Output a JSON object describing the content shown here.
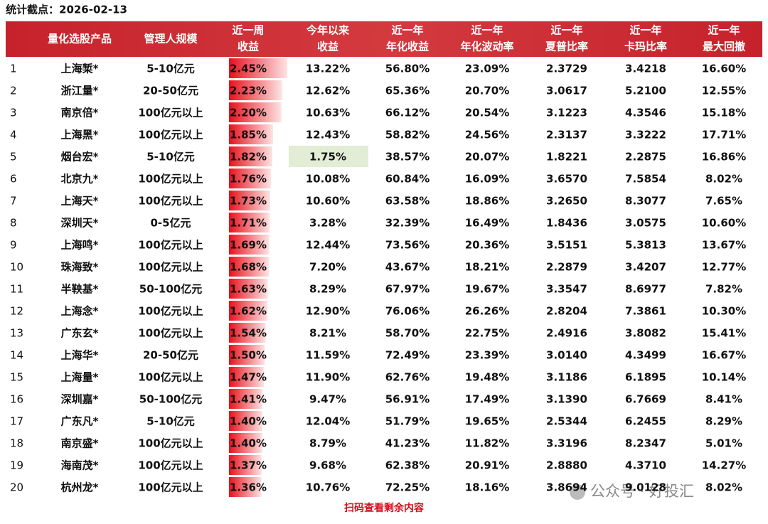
{
  "header": {
    "title": "统计截点：2026-02-13"
  },
  "table": {
    "columns": [
      [
        "量化选股产品"
      ],
      [
        "管理人规模"
      ],
      [
        "近一周",
        "收益"
      ],
      [
        "今年以来",
        "收益"
      ],
      [
        "近一年",
        "年化收益"
      ],
      [
        "近一年",
        "年化波动率"
      ],
      [
        "近一年",
        "夏普比率"
      ],
      [
        "近一年",
        "卡玛比率"
      ],
      [
        "近一年",
        "最大回撤"
      ]
    ],
    "rows": [
      [
        "1",
        "上海椠*",
        "5-10亿元",
        "2.45%",
        "13.22%",
        "56.80%",
        "23.09%",
        "2.3729",
        "3.4218",
        "16.60%"
      ],
      [
        "2",
        "浙江量*",
        "20-50亿元",
        "2.23%",
        "12.62%",
        "65.36%",
        "20.70%",
        "3.0617",
        "5.2100",
        "12.55%"
      ],
      [
        "3",
        "南京倍*",
        "100亿元以上",
        "2.20%",
        "10.63%",
        "66.12%",
        "20.54%",
        "3.1223",
        "4.3546",
        "15.18%"
      ],
      [
        "4",
        "上海黑*",
        "100亿元以上",
        "1.85%",
        "12.43%",
        "58.82%",
        "24.56%",
        "2.3137",
        "3.3222",
        "17.71%"
      ],
      [
        "5",
        "烟台宏*",
        "5-10亿元",
        "1.82%",
        "1.75%",
        "38.57%",
        "20.07%",
        "1.8221",
        "2.2875",
        "16.86%"
      ],
      [
        "6",
        "北京九*",
        "100亿元以上",
        "1.76%",
        "10.08%",
        "60.84%",
        "16.09%",
        "3.6570",
        "7.5854",
        "8.02%"
      ],
      [
        "7",
        "上海天*",
        "100亿元以上",
        "1.73%",
        "10.60%",
        "63.58%",
        "18.86%",
        "3.2650",
        "8.3077",
        "7.65%"
      ],
      [
        "8",
        "深圳天*",
        "0-5亿元",
        "1.71%",
        "3.28%",
        "32.39%",
        "16.49%",
        "1.8436",
        "3.0575",
        "10.60%"
      ],
      [
        "9",
        "上海鸣*",
        "100亿元以上",
        "1.69%",
        "12.44%",
        "73.56%",
        "20.36%",
        "3.5151",
        "5.3813",
        "13.67%"
      ],
      [
        "10",
        "珠海致*",
        "100亿元以上",
        "1.68%",
        "7.20%",
        "43.67%",
        "18.21%",
        "2.2879",
        "3.4207",
        "12.77%"
      ],
      [
        "11",
        "半鞅基*",
        "50-100亿元",
        "1.63%",
        "8.29%",
        "67.97%",
        "19.67%",
        "3.3547",
        "8.6977",
        "7.82%"
      ],
      [
        "12",
        "上海念*",
        "100亿元以上",
        "1.62%",
        "12.90%",
        "76.06%",
        "26.26%",
        "2.8204",
        "7.3861",
        "10.30%"
      ],
      [
        "13",
        "广东玄*",
        "100亿元以上",
        "1.54%",
        "8.21%",
        "58.70%",
        "22.75%",
        "2.4916",
        "3.8082",
        "15.41%"
      ],
      [
        "14",
        "上海华*",
        "20-50亿元",
        "1.50%",
        "11.59%",
        "72.49%",
        "23.39%",
        "3.0140",
        "4.3499",
        "16.67%"
      ],
      [
        "15",
        "上海量*",
        "100亿元以上",
        "1.47%",
        "11.90%",
        "62.76%",
        "19.48%",
        "3.1186",
        "6.1895",
        "10.14%"
      ],
      [
        "16",
        "深圳嘉*",
        "50-100亿元",
        "1.41%",
        "9.47%",
        "56.91%",
        "17.49%",
        "3.1390",
        "6.7669",
        "8.41%"
      ],
      [
        "17",
        "广东凡*",
        "5-10亿元",
        "1.40%",
        "12.04%",
        "51.79%",
        "19.65%",
        "2.5344",
        "6.2455",
        "8.29%"
      ],
      [
        "18",
        "南京盛*",
        "100亿元以上",
        "1.40%",
        "8.79%",
        "41.23%",
        "11.82%",
        "3.3196",
        "8.2347",
        "5.01%"
      ],
      [
        "19",
        "海南茂*",
        "100亿元以上",
        "1.37%",
        "9.68%",
        "62.38%",
        "20.91%",
        "2.8880",
        "4.3710",
        "14.27%"
      ],
      [
        "20",
        "杭州龙*",
        "100亿元以上",
        "1.36%",
        "10.76%",
        "72.25%",
        "18.16%",
        "3.8694",
        "9.0128",
        "8.02%"
      ]
    ]
  },
  "footer": {
    "note": "扫码查看剩余内容",
    "watermark": "公众号 · 好投汇"
  }
}
